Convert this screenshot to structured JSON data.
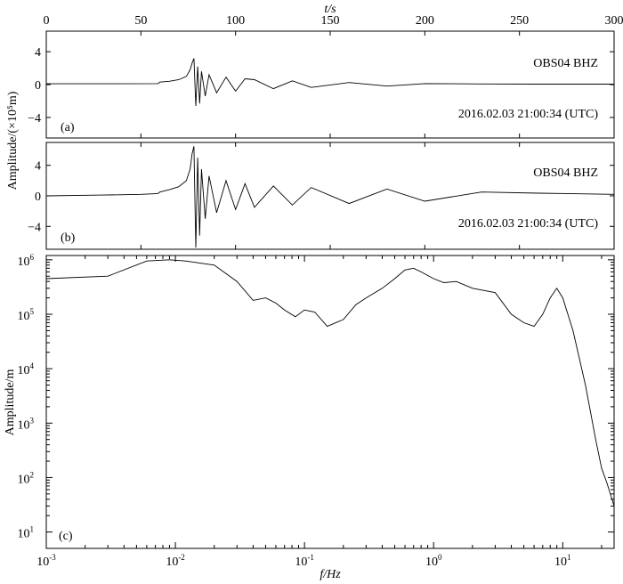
{
  "chart_data": [
    {
      "type": "line",
      "panel_label": "(a)",
      "station_label": "OBS04  BHZ",
      "time_label": "2016.02.03  21:00:34 (UTC)",
      "xlabel_top": "t/s",
      "ylabel": "Amplitude/(×10⁵m)",
      "xlim": [
        0,
        300
      ],
      "ylim": [
        -6.5,
        6.5
      ],
      "xticks": [
        0,
        50,
        100,
        150,
        200,
        250,
        300
      ],
      "yticks": [
        -4,
        0,
        4
      ],
      "ytick_labels": [
        "−4",
        "0",
        "4"
      ],
      "series": [
        {
          "points": [
            [
              0,
              0.1
            ],
            [
              30,
              0.1
            ],
            [
              59,
              0.12
            ],
            [
              60,
              0.3
            ],
            [
              65,
              0.4
            ],
            [
              70,
              0.6
            ],
            [
              74,
              1.0
            ],
            [
              76,
              1.8
            ],
            [
              77,
              2.6
            ],
            [
              78,
              3.2
            ],
            [
              79,
              -2.6
            ],
            [
              80,
              2.2
            ],
            [
              81,
              -2.3
            ],
            [
              82,
              1.6
            ],
            [
              84,
              -1.4
            ],
            [
              86,
              1.2
            ],
            [
              90,
              -1.0
            ],
            [
              95,
              0.9
            ],
            [
              100,
              -0.8
            ],
            [
              105,
              0.7
            ],
            [
              110,
              0.6
            ],
            [
              120,
              -0.5
            ],
            [
              130,
              0.45
            ],
            [
              140,
              -0.35
            ],
            [
              160,
              0.25
            ],
            [
              180,
              -0.18
            ],
            [
              200,
              0.12
            ],
            [
              230,
              0.08
            ],
            [
              260,
              0.05
            ],
            [
              300,
              0.05
            ]
          ]
        }
      ]
    },
    {
      "type": "line",
      "panel_label": "(b)",
      "station_label": "OBS04  BHZ",
      "time_label": "2016.02.03  21:00:34 (UTC)",
      "xlim": [
        0,
        300
      ],
      "ylim": [
        -7,
        7
      ],
      "yticks": [
        -4,
        0,
        4
      ],
      "ytick_labels": [
        "−4",
        "0",
        "4"
      ],
      "series": [
        {
          "points": [
            [
              0,
              0
            ],
            [
              30,
              0.1
            ],
            [
              50,
              0.2
            ],
            [
              59,
              0.3
            ],
            [
              60,
              0.5
            ],
            [
              65,
              0.8
            ],
            [
              70,
              1.2
            ],
            [
              74,
              2.0
            ],
            [
              76,
              3.5
            ],
            [
              77,
              5.5
            ],
            [
              78,
              6.5
            ],
            [
              79,
              -6.8
            ],
            [
              80,
              5.0
            ],
            [
              81,
              -5.2
            ],
            [
              82,
              3.5
            ],
            [
              84,
              -3.0
            ],
            [
              86,
              2.6
            ],
            [
              90,
              -2.2
            ],
            [
              95,
              2.0
            ],
            [
              100,
              -1.8
            ],
            [
              105,
              1.6
            ],
            [
              110,
              -1.5
            ],
            [
              120,
              1.3
            ],
            [
              130,
              -1.2
            ],
            [
              140,
              1.1
            ],
            [
              160,
              -1.0
            ],
            [
              180,
              0.9
            ],
            [
              200,
              -0.7
            ],
            [
              230,
              0.5
            ],
            [
              260,
              0.35
            ],
            [
              300,
              0.2
            ]
          ]
        }
      ]
    },
    {
      "type": "line",
      "panel_label": "(c)",
      "xlabel": "f/Hz",
      "ylabel": "Amplitude/m",
      "x_scale": "log",
      "y_scale": "log",
      "xlim": [
        0.001,
        25
      ],
      "ylim": [
        5,
        1200000
      ],
      "xticks": [
        0.001,
        0.01,
        0.1,
        1,
        10
      ],
      "yticks": [
        10,
        100,
        1000,
        10000,
        100000,
        1000000
      ],
      "series": [
        {
          "points": [
            [
              0.001,
              450000
            ],
            [
              0.003,
              500000
            ],
            [
              0.006,
              950000
            ],
            [
              0.009,
              1000000
            ],
            [
              0.012,
              950000
            ],
            [
              0.02,
              800000
            ],
            [
              0.03,
              400000
            ],
            [
              0.04,
              180000
            ],
            [
              0.05,
              200000
            ],
            [
              0.06,
              160000
            ],
            [
              0.07,
              120000
            ],
            [
              0.085,
              90000
            ],
            [
              0.1,
              120000
            ],
            [
              0.12,
              110000
            ],
            [
              0.15,
              60000
            ],
            [
              0.2,
              80000
            ],
            [
              0.25,
              150000
            ],
            [
              0.3,
              200000
            ],
            [
              0.4,
              300000
            ],
            [
              0.5,
              450000
            ],
            [
              0.6,
              650000
            ],
            [
              0.7,
              700000
            ],
            [
              0.8,
              600000
            ],
            [
              1.0,
              450000
            ],
            [
              1.2,
              380000
            ],
            [
              1.5,
              400000
            ],
            [
              2.0,
              300000
            ],
            [
              3.0,
              250000
            ],
            [
              4.0,
              100000
            ],
            [
              5.0,
              70000
            ],
            [
              6.0,
              60000
            ],
            [
              7.0,
              100000
            ],
            [
              8.0,
              200000
            ],
            [
              9.0,
              300000
            ],
            [
              10,
              200000
            ],
            [
              12,
              50000
            ],
            [
              15,
              5000
            ],
            [
              18,
              500
            ],
            [
              20,
              150
            ],
            [
              22,
              80
            ],
            [
              25,
              30
            ]
          ]
        }
      ]
    }
  ]
}
